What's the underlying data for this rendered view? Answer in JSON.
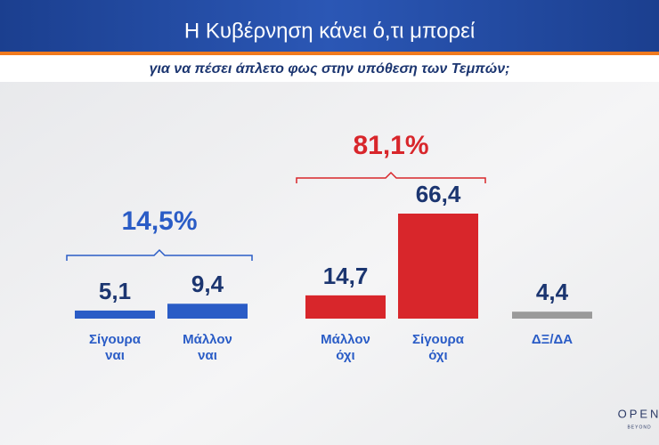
{
  "chart_data": {
    "type": "bar",
    "title": "Η Κυβέρνηση κάνει ό,τι μπορεί",
    "subtitle": "για να πέσει άπλετο φως στην υπόθεση των Τεμπών;",
    "categories": [
      "Σίγουρα ναι",
      "Μάλλον ναι",
      "Μάλλον όχι",
      "Σίγουρα όχι",
      "ΔΞ/ΔΑ"
    ],
    "values": [
      5.1,
      9.4,
      14.7,
      66.4,
      4.4
    ],
    "value_labels": [
      "5,1",
      "9,4",
      "14,7",
      "66,4",
      "4,4"
    ],
    "colors": [
      "#2a5cc6",
      "#2a5cc6",
      "#d8262b",
      "#d8262b",
      "#9a9a9a"
    ],
    "annotations": [
      {
        "text": "14,5%",
        "color": "#2a5cc6"
      },
      {
        "text": "81,1%",
        "color": "#d8262b"
      }
    ],
    "logo": {
      "name": "OPEN",
      "tagline": "BEYOND"
    }
  }
}
